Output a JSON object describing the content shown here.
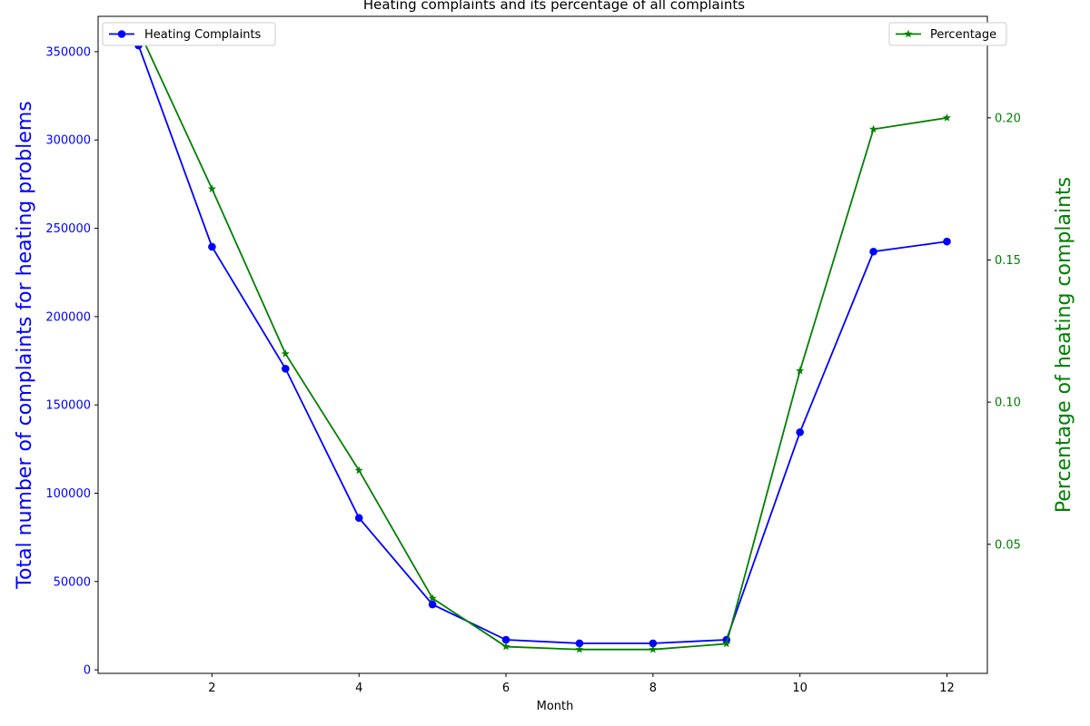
{
  "chart_data": {
    "type": "line",
    "title": "Heating complaints and its percentage of all complaints",
    "xlabel": "Month",
    "ylabel": "Total number of complaints for heating problems",
    "y2label": "Percentage of heating complaints",
    "x": [
      1,
      2,
      3,
      4,
      5,
      6,
      7,
      8,
      9,
      10,
      11,
      12
    ],
    "xlim": [
      0.45,
      12.55
    ],
    "xticks": [
      2,
      4,
      6,
      8,
      10,
      12
    ],
    "ylim": [
      -2000,
      370000
    ],
    "yticks": [
      0,
      50000,
      100000,
      150000,
      200000,
      250000,
      300000,
      350000
    ],
    "y2lim": [
      0.0046,
      0.2357
    ],
    "y2ticks": [
      0.05,
      0.1,
      0.15,
      0.2
    ],
    "grid": false,
    "series": [
      {
        "name": "Heating Complaints",
        "axis": "left",
        "color": "#0000ff",
        "marker": "circle",
        "legend_position": "upper-left",
        "values": [
          353500,
          239500,
          170500,
          86000,
          37000,
          17000,
          15000,
          15000,
          17000,
          134500,
          236800,
          242500
        ]
      },
      {
        "name": "Percentage",
        "axis": "right",
        "color": "#008000",
        "marker": "star",
        "legend_position": "upper-right",
        "values": [
          0.231,
          0.175,
          0.117,
          0.076,
          0.031,
          0.014,
          0.013,
          0.013,
          0.015,
          0.111,
          0.196,
          0.2
        ]
      }
    ]
  }
}
